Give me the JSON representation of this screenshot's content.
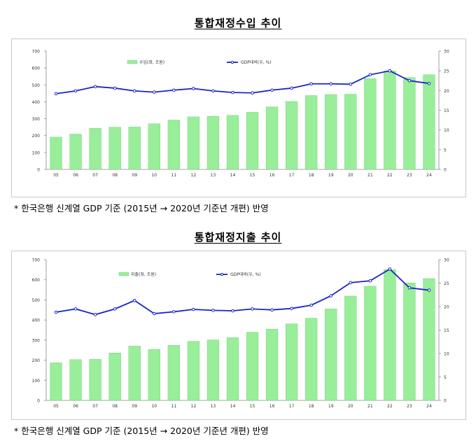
{
  "chart_data": [
    {
      "type": "bar",
      "title": "통합재정수입 추이",
      "categories": [
        "05",
        "06",
        "07",
        "08",
        "09",
        "10",
        "11",
        "12",
        "13",
        "14",
        "15",
        "16",
        "17",
        "18",
        "19",
        "20",
        "21",
        "22",
        "23",
        "24"
      ],
      "series": [
        {
          "name": "수입(좌, 조원)",
          "type": "bar",
          "axis": "left",
          "color": "#99ee99",
          "values": [
            191,
            209,
            243,
            250,
            251,
            270,
            292,
            311,
            314,
            320,
            338,
            370,
            402,
            437,
            443,
            445,
            537,
            583,
            543,
            560
          ]
        },
        {
          "name": "GDP대비(우, %)",
          "type": "line",
          "axis": "right",
          "color": "#1a24c8",
          "values": [
            19.2,
            19.9,
            21.0,
            20.6,
            19.9,
            19.6,
            20.1,
            20.5,
            19.9,
            19.5,
            19.4,
            20.1,
            20.6,
            21.7,
            21.7,
            21.6,
            24.0,
            25.0,
            22.5,
            21.8
          ]
        }
      ],
      "yleft": {
        "ticks": [
          "0",
          "100",
          "200",
          "300",
          "400",
          "500",
          "600",
          "700"
        ],
        "lim": [
          0,
          700
        ]
      },
      "yright": {
        "ticks": [
          "0",
          "5",
          "10",
          "15",
          "20",
          "25",
          "30"
        ],
        "lim": [
          0,
          30
        ]
      },
      "legend_position": "top",
      "grid": false
    },
    {
      "type": "bar",
      "title": "통합재정지출 추이",
      "categories": [
        "05",
        "06",
        "07",
        "08",
        "09",
        "10",
        "11",
        "12",
        "13",
        "14",
        "15",
        "16",
        "17",
        "18",
        "19",
        "20",
        "21",
        "22",
        "23",
        "24"
      ],
      "series": [
        {
          "name": "지출(좌, 조원)",
          "type": "bar",
          "axis": "left",
          "color": "#99ee99",
          "values": [
            187,
            203,
            205,
            236,
            270,
            254,
            274,
            294,
            301,
            312,
            339,
            355,
            381,
            409,
            455,
            519,
            568,
            651,
            584,
            606
          ]
        },
        {
          "name": "GDP대비(우, %)",
          "type": "line",
          "axis": "right",
          "color": "#1a24c8",
          "values": [
            18.8,
            19.5,
            18.3,
            19.5,
            21.3,
            18.5,
            18.9,
            19.4,
            19.2,
            19.1,
            19.5,
            19.3,
            19.6,
            20.3,
            22.3,
            25.1,
            25.5,
            28.0,
            24.0,
            23.5
          ]
        }
      ],
      "yleft": {
        "ticks": [
          "0",
          "100",
          "200",
          "300",
          "400",
          "500",
          "600",
          "700"
        ],
        "lim": [
          0,
          700
        ]
      },
      "yright": {
        "ticks": [
          "0",
          "5",
          "10",
          "15",
          "20",
          "25",
          "30"
        ],
        "lim": [
          0,
          30
        ]
      },
      "legend_position": "top",
      "grid": false
    }
  ],
  "notes": {
    "note1": "* 한국은행 신계열 GDP 기준 (2015년 → 2020년 기준년 개편) 반영",
    "note2": "* 한국은행 신계열 GDP 기준 (2015년 → 2020년 기준년 개편) 반영"
  }
}
